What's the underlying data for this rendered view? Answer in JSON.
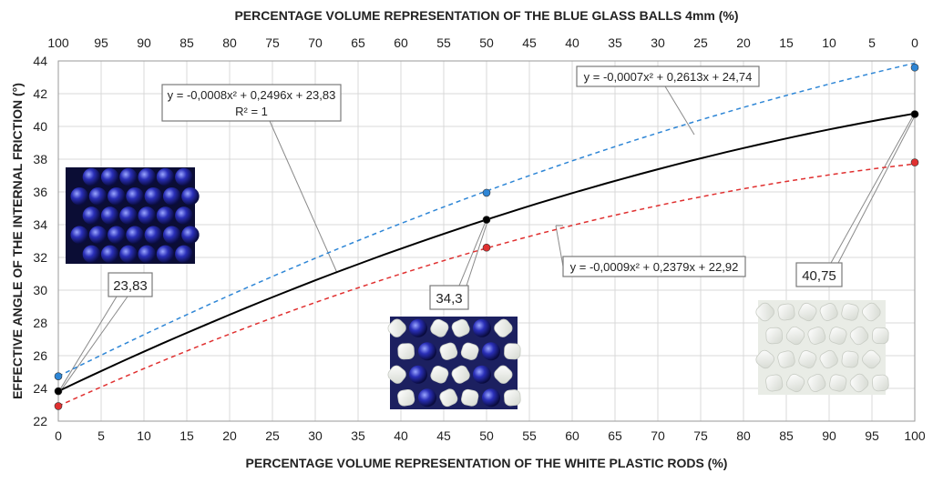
{
  "chart_data": {
    "type": "line",
    "title": "",
    "xlabel": "PERCENTAGE VOLUME REPRESENTATION OF THE WHITE PLASTIC RODS (%)",
    "x2label": "PERCENTAGE VOLUME REPRESENTATION OF THE BLUE GLASS BALLS 4mm  (%)",
    "ylabel": "EFFECTIVE ANGLE OF THE INTERNAL FRICTION (°)",
    "xlim": [
      0,
      100
    ],
    "ylim": [
      22,
      44
    ],
    "x_ticks": [
      "0",
      "5",
      "10",
      "15",
      "20",
      "25",
      "30",
      "35",
      "40",
      "45",
      "50",
      "55",
      "60",
      "65",
      "70",
      "75",
      "80",
      "85",
      "90",
      "95",
      "100"
    ],
    "x2_ticks": [
      "100",
      "95",
      "90",
      "85",
      "80",
      "75",
      "70",
      "65",
      "60",
      "55",
      "50",
      "45",
      "40",
      "35",
      "30",
      "25",
      "20",
      "15",
      "10",
      "5",
      "0"
    ],
    "y_ticks": [
      "22",
      "24",
      "26",
      "28",
      "30",
      "32",
      "34",
      "36",
      "38",
      "40",
      "42",
      "44"
    ],
    "grid": true,
    "series": [
      {
        "color": "#000000",
        "style": "solid",
        "points": [
          {
            "x": 0,
            "y": 23.83
          },
          {
            "x": 50,
            "y": 34.3
          },
          {
            "x": 100,
            "y": 40.75
          }
        ],
        "equation": {
          "a": -0.0008,
          "b": 0.2496,
          "c": 23.83
        }
      },
      {
        "color": "#2e86d6",
        "style": "dashed",
        "points": [
          {
            "x": 0,
            "y": 24.74
          },
          {
            "x": 50,
            "y": 35.95
          },
          {
            "x": 100,
            "y": 43.6
          }
        ],
        "equation": {
          "a": -0.0007,
          "b": 0.2613,
          "c": 24.74
        }
      },
      {
        "color": "#e03030",
        "style": "dashed",
        "points": [
          {
            "x": 0,
            "y": 22.92
          },
          {
            "x": 50,
            "y": 32.6
          },
          {
            "x": 100,
            "y": 37.8
          }
        ],
        "equation": {
          "a": -0.0009,
          "b": 0.2379,
          "c": 22.92
        }
      }
    ],
    "annotations": {
      "eq_black_line1": "y = -0,0008x² + 0,2496x + 23,83",
      "eq_black_line2": "R² = 1",
      "eq_blue": "y = -0,0007x² + 0,2613x + 24,74",
      "eq_red": "y = -0,0009x² + 0,2379x + 22,92",
      "label_0": "23,83",
      "label_50": "34,3",
      "label_100": "40,75"
    }
  }
}
